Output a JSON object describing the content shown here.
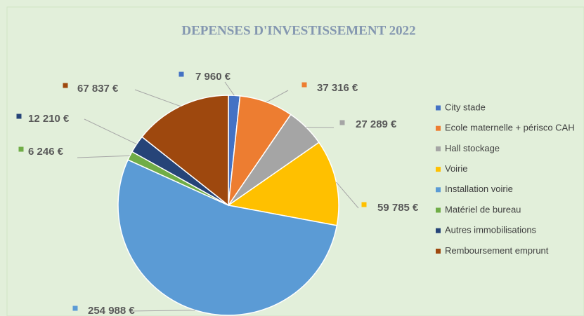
{
  "chart_data": {
    "type": "pie",
    "title": "DEPENSES D'INVESTISSEMENT 2022",
    "categories": [
      "City stade",
      "Ecole maternelle  + périsco CAH",
      "Hall stockage",
      "Voirie",
      "Installation voirie",
      "Matériel de bureau",
      "Autres immobilisations",
      "Remboursement emprunt"
    ],
    "values": [
      7960,
      37316,
      27289,
      59785,
      254988,
      6246,
      12210,
      67837
    ],
    "value_labels": [
      "7 960 €",
      "37 316 €",
      "27 289 €",
      "59 785 €",
      "254 988 €",
      "6 246 €",
      "12 210 €",
      "67 837 €"
    ],
    "colors": [
      "#4472c4",
      "#ed7d31",
      "#a5a5a5",
      "#ffc000",
      "#5b9bd5",
      "#70ad47",
      "#264478",
      "#9e480e"
    ],
    "legend": "right"
  }
}
